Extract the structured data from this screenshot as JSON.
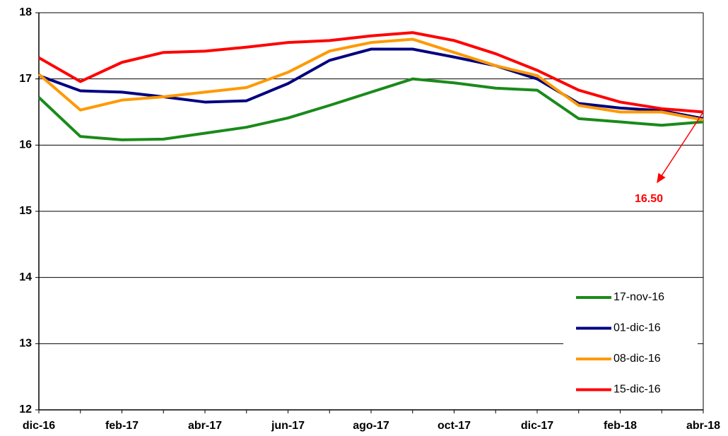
{
  "chart_data": {
    "type": "line",
    "categories": [
      "dic-16",
      null,
      "feb-17",
      null,
      "abr-17",
      null,
      "jun-17",
      null,
      "ago-17",
      null,
      "oct-17",
      null,
      "dic-17",
      null,
      "feb-18",
      null,
      "abr-18"
    ],
    "series": [
      {
        "name": "17-nov-16",
        "color": "#1a8a1a",
        "values": [
          16.72,
          16.13,
          16.08,
          16.09,
          16.18,
          16.27,
          16.41,
          16.6,
          16.8,
          17.0,
          16.94,
          16.86,
          16.83,
          16.4,
          16.35,
          16.3,
          16.35
        ]
      },
      {
        "name": "01-dic-16",
        "color": "#000080",
        "values": [
          17.05,
          16.82,
          16.8,
          16.73,
          16.65,
          16.67,
          16.93,
          17.28,
          17.45,
          17.45,
          17.33,
          17.2,
          17.0,
          16.63,
          16.56,
          16.52,
          16.4
        ]
      },
      {
        "name": "08-dic-16",
        "color": "#ff9900",
        "values": [
          17.07,
          16.53,
          16.68,
          16.73,
          16.8,
          16.87,
          17.1,
          17.42,
          17.55,
          17.6,
          17.4,
          17.2,
          17.05,
          16.6,
          16.5,
          16.5,
          16.38
        ]
      },
      {
        "name": "15-dic-16",
        "color": "#ff0000",
        "values": [
          17.32,
          16.96,
          17.25,
          17.4,
          17.42,
          17.48,
          17.55,
          17.58,
          17.65,
          17.7,
          17.58,
          17.38,
          17.13,
          16.83,
          16.65,
          16.55,
          16.5
        ]
      }
    ],
    "ylim": [
      12,
      18
    ],
    "yticks": [
      12,
      13,
      14,
      15,
      16,
      17,
      18
    ],
    "grid": true,
    "legend": "lower right",
    "annotations": [
      {
        "text": "16.50",
        "color": "#ff0000"
      }
    ]
  }
}
